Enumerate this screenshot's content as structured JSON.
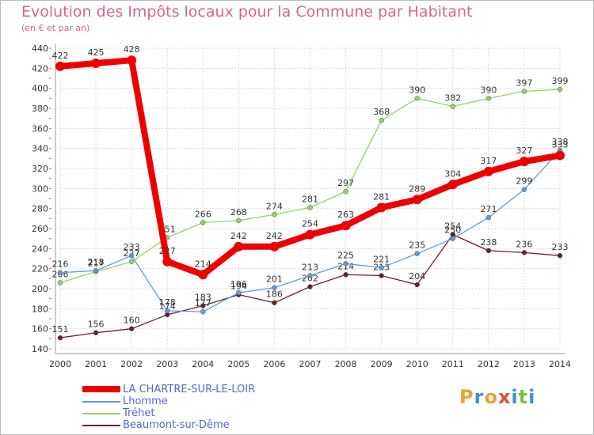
{
  "title": "Evolution des Impôts locaux pour la Commune par Habitant",
  "subtitle": "(en € et par an)",
  "logo": {
    "text": "Proxiti",
    "letters": [
      "P",
      "r",
      "o",
      "x",
      "i",
      "t",
      "i"
    ],
    "colors": [
      "#e8a33a",
      "#3a8fd9",
      "#e8a33a",
      "#e84a3a",
      "#3a8fd9",
      "#7fbf3f",
      "#3a8fd9"
    ]
  },
  "chart_data": {
    "type": "line",
    "title": "Evolution des Impôts locaux pour la Commune par Habitant",
    "subtitle": "(en € et par an)",
    "xlabel": "",
    "ylabel": "",
    "x": [
      2000,
      2001,
      2002,
      2003,
      2004,
      2005,
      2006,
      2007,
      2008,
      2009,
      2010,
      2011,
      2012,
      2013,
      2014
    ],
    "ylim": [
      140,
      440
    ],
    "yticks": [
      140,
      160,
      180,
      200,
      220,
      240,
      260,
      280,
      300,
      320,
      340,
      360,
      380,
      400,
      420,
      440
    ],
    "grid": true,
    "legend_position": "bottom-left",
    "series": [
      {
        "name": "Beaumont-sur-Dême",
        "color": "#6b1f2a",
        "values": [
          151,
          156,
          160,
          174,
          183,
          194,
          186,
          202,
          214,
          213,
          204,
          254,
          238,
          236,
          233
        ],
        "labels": [
          "151",
          "156",
          "160",
          "174",
          "183",
          "194",
          "186",
          "202",
          "214",
          "213",
          "204",
          "254",
          "238",
          "236",
          "233"
        ]
      },
      {
        "name": "Tréhet",
        "color": "#8ed465",
        "values": [
          206,
          217,
          227,
          251,
          266,
          268,
          274,
          281,
          297,
          368,
          390,
          382,
          390,
          397,
          399
        ],
        "labels": [
          "206",
          "217",
          "227",
          "251",
          "266",
          "268",
          "274",
          "281",
          "297",
          "368",
          "390",
          "382",
          "390",
          "397",
          "399"
        ]
      },
      {
        "name": "Lhomme",
        "color": "#5a9fd4",
        "values": [
          216,
          218,
          233,
          178,
          177,
          196,
          201,
          213,
          225,
          221,
          235,
          250,
          271,
          299,
          338
        ],
        "labels": [
          "216",
          "218",
          "233",
          "178",
          "177",
          "196",
          "201",
          "213",
          "225",
          "221",
          "235",
          "250",
          "271",
          "299",
          "338"
        ]
      },
      {
        "name": "LA CHARTRE-SUR-LE-LOIR",
        "color": "#ee0000",
        "values": [
          422,
          425,
          428,
          227,
          214,
          242,
          242,
          254,
          263,
          281,
          289,
          304,
          317,
          327,
          333
        ],
        "labels": [
          "422",
          "425",
          "428",
          "227",
          "214",
          "242",
          "242",
          "254",
          "263",
          "281",
          "289",
          "304",
          "317",
          "327",
          "333"
        ]
      }
    ],
    "legend": [
      "LA CHARTRE-SUR-LE-LOIR",
      "Lhomme",
      "Tréhet",
      "Beaumont-sur-Dême"
    ]
  }
}
